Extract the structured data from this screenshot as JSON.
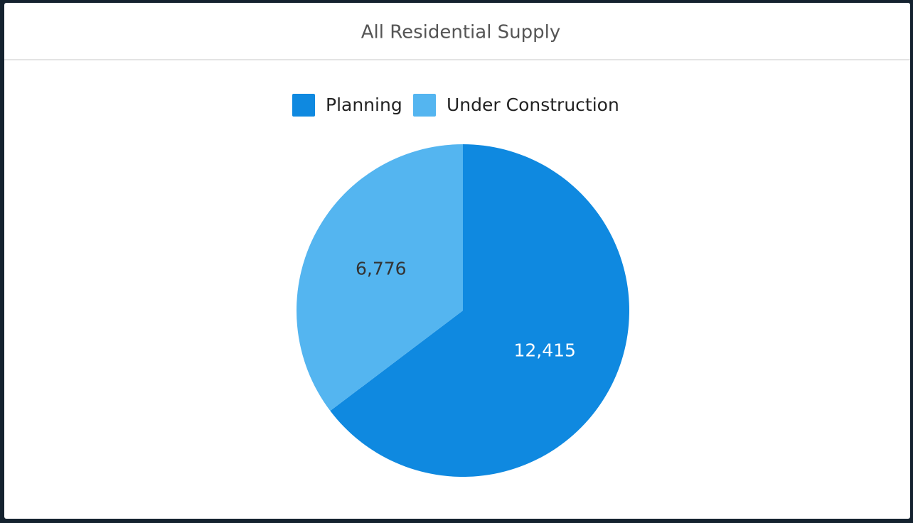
{
  "chart_data": {
    "type": "pie",
    "title": "All Residential Supply",
    "categories": [
      "Planning",
      "Under Construction"
    ],
    "values": [
      12415,
      6776
    ],
    "value_labels": [
      "12,415",
      "6,776"
    ],
    "colors": [
      "#0f89e0",
      "#54b5f0"
    ],
    "legend": "top"
  }
}
